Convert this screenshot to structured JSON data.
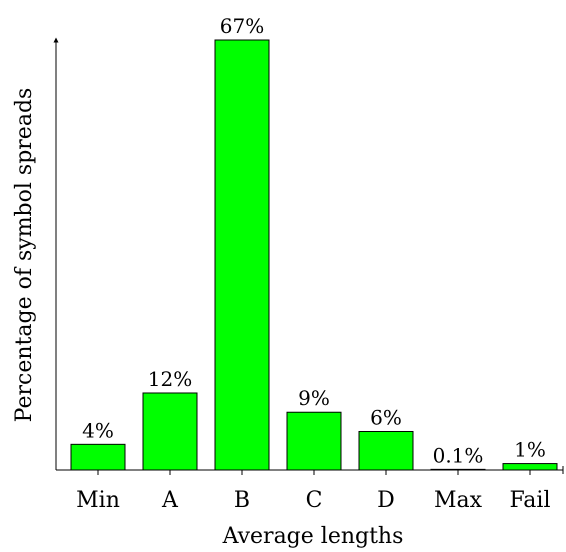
{
  "chart_data": {
    "type": "bar",
    "categories": [
      "Min",
      "A",
      "B",
      "C",
      "D",
      "Max",
      "Fail"
    ],
    "values": [
      4,
      12,
      67,
      9,
      6,
      0.1,
      1
    ],
    "value_labels": [
      "4%",
      "12%",
      "67%",
      "9%",
      "6%",
      "0.1%",
      "1%"
    ],
    "xlabel": "Average lengths",
    "ylabel": "Percentage of symbol spreads",
    "ylim": [
      0,
      67
    ],
    "grid": false,
    "bar_color": "#00ff00",
    "edge_color": "#000000"
  }
}
